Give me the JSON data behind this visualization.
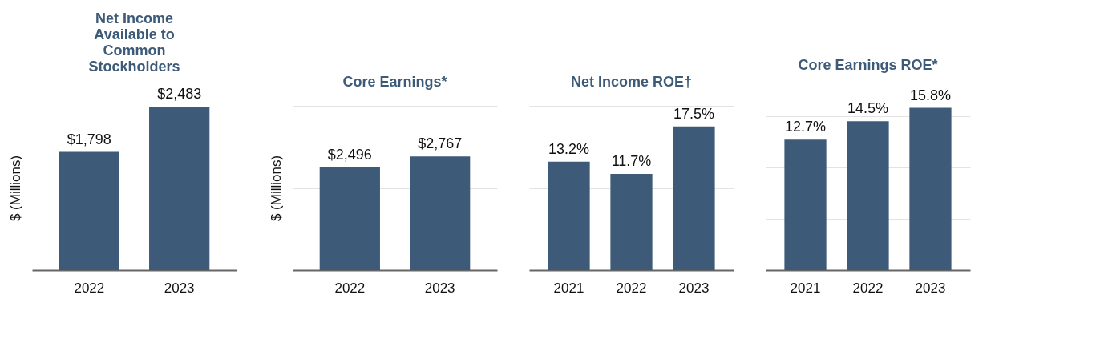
{
  "chart_data": [
    {
      "type": "bar",
      "title": "Net Income Available to Common Stockholders",
      "ylabel": "$ (Millions)",
      "categories": [
        "2022",
        "2023"
      ],
      "series": [
        {
          "color": "#3d5a78",
          "values": [
            1798,
            2483
          ],
          "value_labels": [
            "$1,798",
            "$2,483"
          ]
        }
      ],
      "ylim": [
        0,
        2500
      ],
      "yticks": [
        {
          "value": 2000,
          "label": null
        }
      ],
      "grid": "y",
      "tick_labels": "x"
    },
    {
      "type": "bar",
      "title": "Core Earnings*",
      "ylabel": "$ (Millions)",
      "categories": [
        "2022",
        "2023"
      ],
      "series": [
        {
          "color": "#3d5a78",
          "values": [
            2496,
            2767
          ],
          "value_labels": [
            "$2,496",
            "$2,767"
          ]
        }
      ],
      "ylim": [
        0,
        4000
      ],
      "yticks": [
        {
          "value": 2000,
          "label": null
        },
        {
          "value": 4000,
          "label": null
        }
      ],
      "grid": "y",
      "tick_labels": "x"
    },
    {
      "type": "bar",
      "title": "Net Income ROE†",
      "categories": [
        "2021",
        "2022",
        "2023"
      ],
      "series": [
        {
          "color": "#3d5a78",
          "values": [
            13.2,
            11.7,
            17.5
          ],
          "value_labels": [
            "13.2%",
            "11.7%",
            "17.5%"
          ]
        }
      ],
      "ylim": [
        0,
        20
      ],
      "yticks": [
        {
          "value": 10,
          "label": null
        },
        {
          "value": 20,
          "label": null
        }
      ],
      "grid": "y",
      "tick_labels": "x"
    },
    {
      "type": "bar",
      "title": "Core Earnings ROE*",
      "categories": [
        "2021",
        "2022",
        "2023"
      ],
      "series": [
        {
          "color": "#3d5a78",
          "values": [
            12.7,
            14.5,
            15.8
          ],
          "value_labels": [
            "12.7%",
            "14.5%",
            "15.8%"
          ]
        }
      ],
      "ylim": [
        0,
        16
      ],
      "yticks": [
        {
          "value": 5,
          "label": null
        },
        {
          "value": 10,
          "label": null
        },
        {
          "value": 15,
          "label": null
        }
      ],
      "grid": "y",
      "tick_labels": "x"
    }
  ]
}
